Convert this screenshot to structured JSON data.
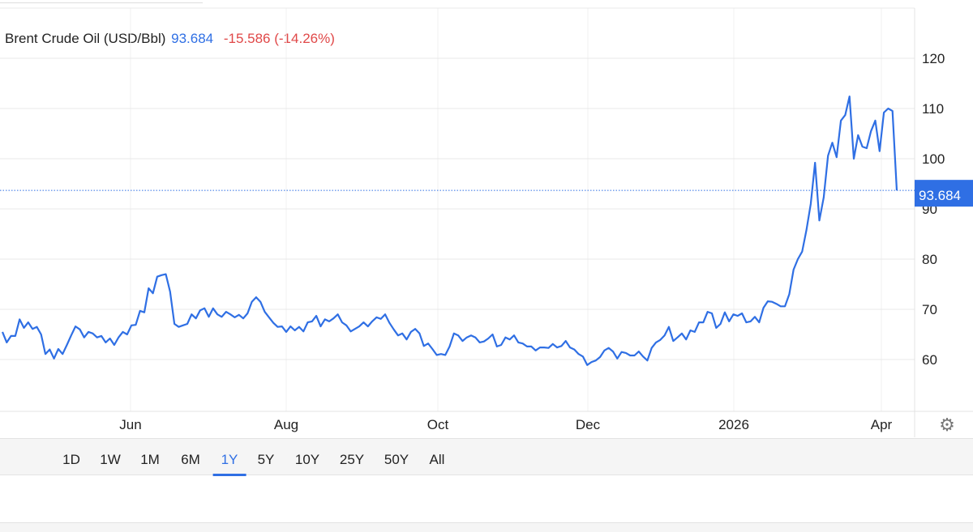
{
  "header": {
    "instrument": "Brent Crude Oil (USD/Bbl)",
    "last": "93.684",
    "change": "-15.586 (-14.26%)"
  },
  "colors": {
    "line": "#2f6fe4",
    "negative": "#e04848",
    "grid": "#e8e8e8"
  },
  "chart_data": {
    "type": "line",
    "title": "",
    "xlabel": "",
    "ylabel": "",
    "ylim": [
      50,
      130
    ],
    "y_ticks": [
      60,
      70,
      80,
      90,
      100,
      110,
      120
    ],
    "x_ticks": [
      "Jun",
      "Aug",
      "Oct",
      "Dec",
      "2026",
      "Apr"
    ],
    "grid": true,
    "last_value_label": "93.684",
    "last_value": 93.684,
    "series": [
      {
        "values": [
          65.5,
          63.4,
          64.7,
          64.7,
          68,
          66.3,
          67.4,
          66.1,
          66.5,
          65,
          61.1,
          62,
          60.2,
          62.1,
          61.1,
          62.9,
          64.8,
          66.6,
          66,
          64.4,
          65.5,
          65.2,
          64.4,
          64.7,
          63.4,
          64.2,
          62.9,
          64.4,
          65.5,
          65,
          66.8,
          66.9,
          69.7,
          69.4,
          74.2,
          73.2,
          76.5,
          76.8,
          77,
          73.5,
          67.1,
          66.5,
          66.8,
          67.1,
          69,
          68.2,
          69.8,
          70.2,
          68.5,
          70.2,
          69,
          68.5,
          69.5,
          69,
          68.4,
          68.9,
          68.2,
          69.2,
          71.5,
          72.4,
          71.5,
          69.5,
          68.4,
          67.3,
          66.5,
          66.6,
          65.5,
          66.6,
          65.8,
          66.5,
          65.6,
          67.4,
          67.6,
          68.7,
          66.6,
          68,
          67.6,
          68.2,
          69,
          67.4,
          66.8,
          65.6,
          66.1,
          66.6,
          67.4,
          66.6,
          67.6,
          68.4,
          68.1,
          69,
          67.3,
          66,
          64.8,
          65.2,
          64,
          65.5,
          66.1,
          65.2,
          62.7,
          63.2,
          62.1,
          60.9,
          61.1,
          60.9,
          62.6,
          65.2,
          64.8,
          63.7,
          64.4,
          64.8,
          64.4,
          63.4,
          63.6,
          64.2,
          65,
          62.6,
          62.9,
          64.4,
          64,
          64.8,
          63.4,
          63.2,
          62.6,
          62.6,
          61.8,
          62.4,
          62.4,
          62.3,
          63.1,
          62.4,
          62.7,
          63.7,
          62.4,
          62,
          61.1,
          60.6,
          58.9,
          59.5,
          59.8,
          60.5,
          61.8,
          62.3,
          61.6,
          60.2,
          61.5,
          61.3,
          60.8,
          60.8,
          61.6,
          60.6,
          59.8,
          62.3,
          63.4,
          63.9,
          64.8,
          66.5,
          63.7,
          64.4,
          65.2,
          64,
          65.8,
          65.5,
          67.4,
          67.4,
          69.5,
          69.2,
          66.3,
          67.1,
          69.4,
          67.6,
          69,
          68.7,
          69.2,
          67.4,
          67.6,
          68.5,
          67.4,
          70.3,
          71.6,
          71.5,
          71.1,
          70.6,
          70.6,
          73,
          77.9,
          80,
          81.5,
          85.8,
          91,
          99.2,
          87.7,
          92.3,
          100.6,
          103.2,
          100.3,
          107.6,
          108.7,
          112.4,
          100,
          104.7,
          102.4,
          102.1,
          105.5,
          107.6,
          101.5,
          109.2,
          110,
          109.5,
          93.684
        ]
      }
    ]
  },
  "range_selector": {
    "options": [
      "1D",
      "1W",
      "1M",
      "6M",
      "1Y",
      "5Y",
      "10Y",
      "25Y",
      "50Y",
      "All"
    ],
    "selected": "1Y"
  },
  "icons": {
    "settings": "gear-icon"
  }
}
